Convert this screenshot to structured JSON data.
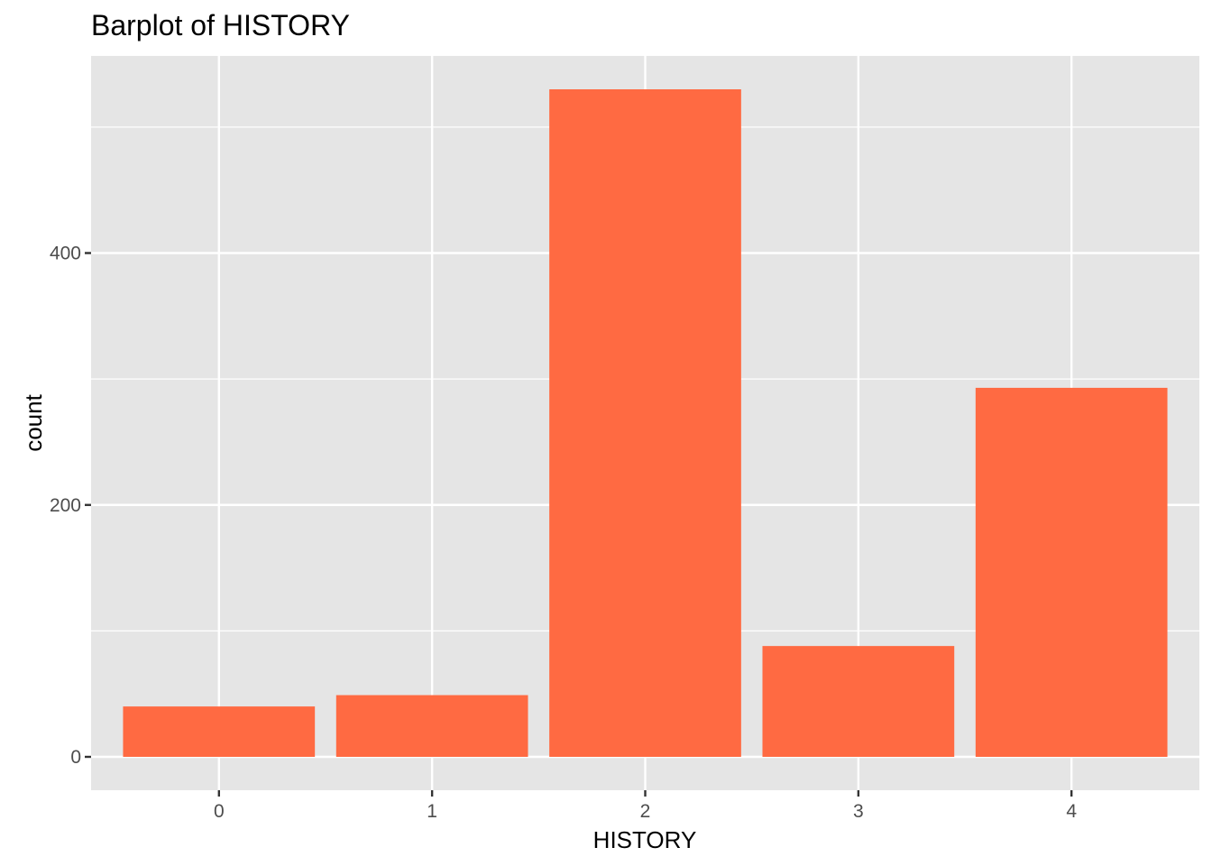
{
  "chart_data": {
    "type": "bar",
    "title": "Barplot of HISTORY",
    "xlabel": "HISTORY",
    "ylabel": "count",
    "categories": [
      "0",
      "1",
      "2",
      "3",
      "4"
    ],
    "values": [
      40,
      49,
      530,
      88,
      293
    ],
    "y_ticks": [
      0,
      200,
      400
    ],
    "y_tick_labels": [
      "0",
      "200",
      "400"
    ],
    "ylim": [
      -26.5,
      556.5
    ],
    "grid": true,
    "legend": "none",
    "colors": {
      "bar": "#FF6A42",
      "panel_background": "#E5E5E5",
      "grid": "#FFFFFF",
      "tick_text": "#4D4D4D",
      "axis_tick": "#333333"
    }
  }
}
